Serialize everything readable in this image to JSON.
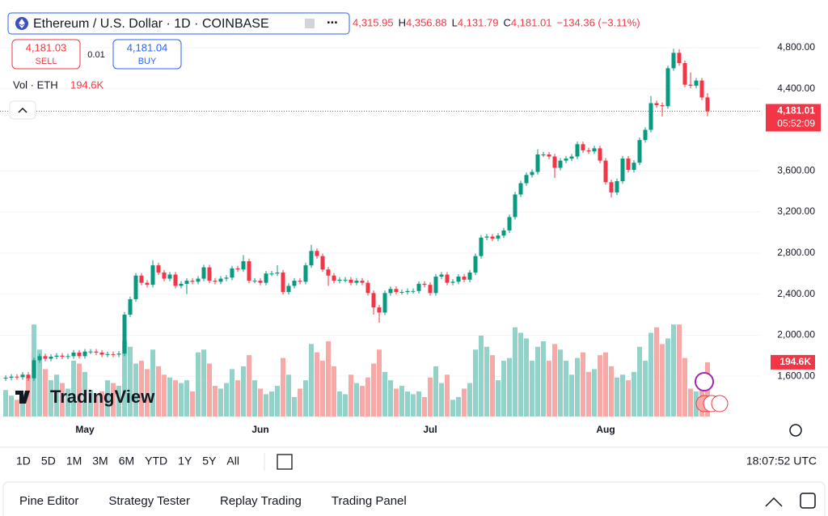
{
  "chart_data": {
    "type": "candlestick",
    "categories": [
      null,
      null,
      null,
      null,
      null,
      null,
      null,
      null,
      null,
      null,
      null,
      null,
      null,
      null,
      "May",
      null,
      null,
      null,
      null,
      null,
      null,
      null,
      null,
      null,
      null,
      null,
      null,
      null,
      null,
      null,
      null,
      null,
      null,
      null,
      null,
      null,
      null,
      null,
      null,
      null,
      null,
      null,
      null,
      null,
      null,
      "Jun",
      null,
      null,
      null,
      null,
      null,
      null,
      null,
      null,
      null,
      null,
      null,
      null,
      null,
      null,
      null,
      null,
      null,
      null,
      null,
      null,
      null,
      null,
      null,
      null,
      null,
      null,
      null,
      null,
      null,
      "Jul",
      null,
      null,
      null,
      null,
      null,
      null,
      null,
      null,
      null,
      null,
      null,
      null,
      null,
      null,
      null,
      null,
      null,
      null,
      null,
      null,
      null,
      null,
      null,
      null,
      null,
      null,
      null,
      null,
      null,
      null,
      "Aug",
      null,
      null,
      null,
      null,
      null,
      null,
      null,
      null,
      null,
      null,
      null,
      null,
      null,
      null,
      null,
      null,
      null,
      null
    ],
    "open": [
      1580,
      1585,
      1595,
      1590,
      1615,
      1580,
      1755,
      1795,
      1770,
      1790,
      1800,
      1790,
      1795,
      1830,
      1795,
      1840,
      1840,
      1830,
      1810,
      1815,
      1810,
      1820,
      2200,
      2350,
      2580,
      2510,
      2490,
      2680,
      2610,
      2550,
      2590,
      2480,
      2500,
      2530,
      2520,
      2550,
      2660,
      2530,
      2520,
      2550,
      2560,
      2650,
      2640,
      2720,
      2530,
      2530,
      2510,
      2600,
      2600,
      2610,
      2420,
      2480,
      2530,
      2520,
      2680,
      2820,
      2770,
      2640,
      2580,
      2530,
      2540,
      2540,
      2510,
      2530,
      2510,
      2410,
      2270,
      2220,
      2410,
      2450,
      2420,
      2420,
      2430,
      2430,
      2500,
      2490,
      2410,
      2570,
      2590,
      2510,
      2520,
      2570,
      2540,
      2610,
      2770,
      2950,
      2960,
      2940,
      2970,
      3020,
      3150,
      3370,
      3480,
      3560,
      3590,
      3760,
      3760,
      3740,
      3630,
      3700,
      3720,
      3740,
      3860,
      3800,
      3790,
      3820,
      3700,
      3490,
      3390,
      3500,
      3720,
      3610,
      3680,
      3900,
      4000,
      4260,
      4240,
      4230,
      4600,
      4750,
      4650,
      4440,
      4430,
      4480,
      4315.95
    ],
    "high": [
      1610,
      1620,
      1620,
      1640,
      1640,
      1780,
      1820,
      1820,
      1815,
      1825,
      1825,
      1820,
      1855,
      1855,
      1865,
      1865,
      1865,
      1855,
      1840,
      1840,
      1845,
      2225,
      2375,
      2605,
      2605,
      2535,
      2730,
      2705,
      2635,
      2615,
      2615,
      2525,
      2555,
      2555,
      2575,
      2685,
      2685,
      2555,
      2575,
      2585,
      2675,
      2675,
      2780,
      2745,
      2555,
      2555,
      2625,
      2625,
      2680,
      2635,
      2505,
      2555,
      2555,
      2705,
      2880,
      2845,
      2795,
      2665,
      2605,
      2565,
      2565,
      2565,
      2555,
      2555,
      2535,
      2435,
      2295,
      2435,
      2475,
      2475,
      2445,
      2455,
      2455,
      2525,
      2525,
      2515,
      2595,
      2615,
      2615,
      2545,
      2595,
      2595,
      2635,
      2795,
      2975,
      2985,
      2985,
      2995,
      3045,
      3175,
      3395,
      3505,
      3585,
      3615,
      3810,
      3785,
      3785,
      3765,
      3725,
      3745,
      3765,
      3885,
      3885,
      3825,
      3845,
      3845,
      3725,
      3515,
      3525,
      3745,
      3745,
      3705,
      3925,
      4025,
      4330,
      4285,
      4265,
      4625,
      4790,
      4785,
      4675,
      4560,
      4505,
      4505,
      4356.88
    ],
    "low": [
      1555,
      1560,
      1565,
      1565,
      1555,
      1555,
      1730,
      1745,
      1745,
      1765,
      1765,
      1765,
      1770,
      1770,
      1770,
      1815,
      1805,
      1785,
      1785,
      1785,
      1785,
      1795,
      2175,
      2325,
      2485,
      2465,
      2465,
      2585,
      2525,
      2525,
      2455,
      2455,
      2400,
      2495,
      2495,
      2525,
      2505,
      2495,
      2495,
      2525,
      2535,
      2615,
      2615,
      2505,
      2505,
      2485,
      2485,
      2575,
      2575,
      2395,
      2395,
      2455,
      2495,
      2495,
      2655,
      2745,
      2615,
      2480,
      2505,
      2505,
      2515,
      2485,
      2485,
      2485,
      2385,
      2200,
      2120,
      2195,
      2385,
      2395,
      2395,
      2395,
      2405,
      2405,
      2465,
      2385,
      2385,
      2545,
      2485,
      2485,
      2495,
      2515,
      2515,
      2585,
      2745,
      2925,
      2915,
      2915,
      2945,
      2995,
      3125,
      3345,
      3455,
      3535,
      3565,
      3735,
      3715,
      3530,
      3605,
      3675,
      3695,
      3715,
      3775,
      3765,
      3765,
      3675,
      3465,
      3340,
      3365,
      3475,
      3585,
      3585,
      3655,
      3875,
      3975,
      4215,
      4130,
      4205,
      4575,
      4625,
      4415,
      4405,
      4405,
      4290,
      4131.79
    ],
    "close": [
      1585,
      1595,
      1590,
      1615,
      1580,
      1755,
      1795,
      1770,
      1790,
      1800,
      1790,
      1795,
      1830,
      1795,
      1840,
      1840,
      1830,
      1810,
      1815,
      1810,
      1820,
      2200,
      2350,
      2580,
      2510,
      2490,
      2680,
      2610,
      2550,
      2590,
      2480,
      2500,
      2530,
      2520,
      2550,
      2660,
      2530,
      2520,
      2550,
      2560,
      2650,
      2640,
      2720,
      2530,
      2530,
      2510,
      2600,
      2600,
      2610,
      2420,
      2480,
      2530,
      2520,
      2680,
      2820,
      2770,
      2640,
      2580,
      2530,
      2540,
      2540,
      2510,
      2530,
      2510,
      2410,
      2270,
      2220,
      2410,
      2450,
      2420,
      2420,
      2430,
      2430,
      2500,
      2490,
      2410,
      2570,
      2590,
      2510,
      2520,
      2570,
      2540,
      2610,
      2770,
      2950,
      2960,
      2940,
      2970,
      3020,
      3150,
      3370,
      3480,
      3560,
      3590,
      3760,
      3760,
      3740,
      3630,
      3700,
      3720,
      3740,
      3860,
      3800,
      3790,
      3820,
      3700,
      3490,
      3390,
      3500,
      3720,
      3610,
      3680,
      3900,
      4000,
      4260,
      4240,
      4230,
      4600,
      4750,
      4650,
      4440,
      4430,
      4480,
      4315.37,
      4181.01
    ],
    "volume": [
      95000,
      75000,
      60000,
      80000,
      140000,
      330000,
      240000,
      170000,
      130000,
      150000,
      120000,
      100000,
      200000,
      190000,
      160000,
      95000,
      80000,
      90000,
      130000,
      120000,
      110000,
      270000,
      250000,
      190000,
      200000,
      170000,
      240000,
      180000,
      150000,
      140000,
      130000,
      120000,
      130000,
      90000,
      230000,
      240000,
      190000,
      110000,
      100000,
      120000,
      170000,
      130000,
      180000,
      220000,
      130000,
      100000,
      80000,
      90000,
      110000,
      210000,
      150000,
      70000,
      100000,
      130000,
      260000,
      230000,
      200000,
      270000,
      180000,
      90000,
      80000,
      150000,
      120000,
      110000,
      140000,
      190000,
      240000,
      160000,
      130000,
      100000,
      110000,
      90000,
      80000,
      90000,
      70000,
      140000,
      180000,
      120000,
      150000,
      60000,
      70000,
      100000,
      120000,
      240000,
      290000,
      250000,
      220000,
      130000,
      200000,
      210000,
      320000,
      300000,
      280000,
      200000,
      250000,
      270000,
      200000,
      260000,
      240000,
      200000,
      150000,
      210000,
      230000,
      160000,
      170000,
      220000,
      230000,
      180000,
      140000,
      150000,
      130000,
      160000,
      250000,
      200000,
      300000,
      320000,
      260000,
      280000,
      330000,
      330000,
      210000,
      100000,
      90000,
      110000,
      194600
    ],
    "volume_value_label": "194.6K",
    "ylim": [
      1207,
      5123
    ],
    "yticks": [
      {
        "value": 1600,
        "label": "1,600.00"
      },
      {
        "value": 2000,
        "label": "2,000.00"
      },
      {
        "value": 2400,
        "label": "2,400.00"
      },
      {
        "value": 2800,
        "label": "2,800.00"
      },
      {
        "value": 3200,
        "label": "3,200.00"
      },
      {
        "value": 3600,
        "label": "3,600.00"
      },
      {
        "value": 4400,
        "label": "4,400.00"
      },
      {
        "value": 4800,
        "label": "4,800.00"
      }
    ],
    "up_color": "#089981",
    "down_color": "#f23645",
    "up_volume_color": "#92d2c8",
    "down_volume_color": "#f7a9a7",
    "grid": true,
    "last_price_label": "4,181.01",
    "countdown": "05:52:09"
  },
  "ui": {
    "symbol": "Ethereum / U.S. Dollar · 1D · COINBASE",
    "ohlc": [
      {
        "key": "",
        "value": "4,315.95"
      },
      {
        "key": "H",
        "value": "4,356.88"
      },
      {
        "key": "L",
        "value": "4,131.79"
      },
      {
        "key": "C",
        "value": "4,181.01"
      }
    ],
    "change": "−134.36 (−3.11%)",
    "sell_price": "4,181.03",
    "sell": "SELL",
    "spread": "0.01",
    "buy_price": "4,181.04",
    "buy": "BUY",
    "volume_title": "Vol · ETH",
    "volume_value": "194.6K",
    "logo": "TradingView",
    "ranges": [
      "1D",
      "5D",
      "1M",
      "3M",
      "6M",
      "YTD",
      "1Y",
      "5Y",
      "All"
    ],
    "clock": "18:07:52 UTC",
    "tabs": [
      "Pine Editor",
      "Strategy Tester",
      "Replay Trading",
      "Trading Panel"
    ]
  }
}
